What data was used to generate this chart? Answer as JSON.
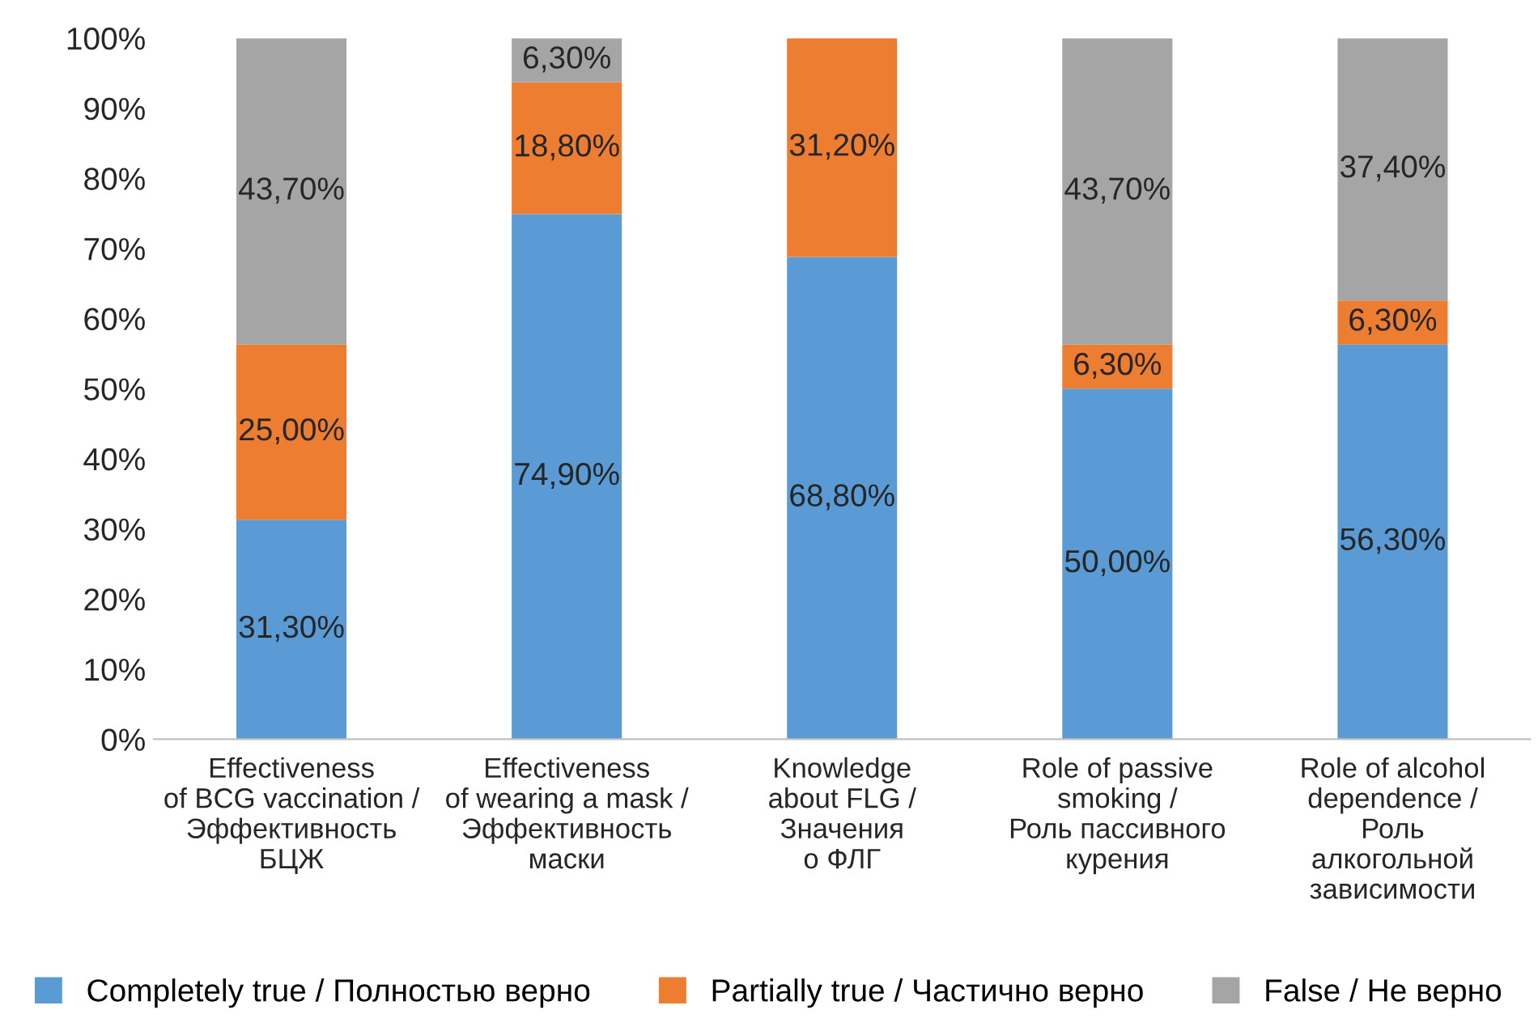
{
  "chart_data": {
    "type": "bar",
    "stacked": true,
    "categories": [
      "Effectiveness\nof BCG vaccination /\nЭффективность\nБЦЖ",
      "Effectiveness\nof wearing a mask /\nЭффективность\nмаски",
      "Knowledge\nabout FLG /\nЗначения\nо ФЛГ",
      "Role of passive\nsmoking /\nРоль пассивного\nкурения",
      "Role of alcohol\ndependence /\nРоль\nалкогольной\nзависимости"
    ],
    "series": [
      {
        "name": "Completely true / Полностью верно",
        "color": "#5b9bd5",
        "values": [
          31.3,
          74.9,
          68.8,
          50.0,
          56.3
        ],
        "value_labels": [
          "31,30%",
          "74,90%",
          "68,80%",
          "50,00%",
          "56,30%"
        ]
      },
      {
        "name": "Partially true / Частично верно",
        "color": "#ed7d31",
        "values": [
          25.0,
          18.8,
          31.2,
          6.3,
          6.3
        ],
        "value_labels": [
          "25,00%",
          "18,80%",
          "31,20%",
          "6,30%",
          "6,30%"
        ]
      },
      {
        "name": "False / Не верно",
        "color": "#a5a5a5",
        "values": [
          43.7,
          6.3,
          0,
          43.7,
          37.4
        ],
        "value_labels": [
          "43,70%",
          "6,30%",
          null,
          "43,70%",
          "37,40%"
        ]
      }
    ],
    "ylim": [
      0,
      100
    ],
    "yticks": [
      {
        "value": 0,
        "label": "0%"
      },
      {
        "value": 10,
        "label": "10%"
      },
      {
        "value": 20,
        "label": "20%"
      },
      {
        "value": 30,
        "label": "30%"
      },
      {
        "value": 40,
        "label": "40%"
      },
      {
        "value": 50,
        "label": "50%"
      },
      {
        "value": 60,
        "label": "60%"
      },
      {
        "value": 70,
        "label": "70%"
      },
      {
        "value": 80,
        "label": "80%"
      },
      {
        "value": 90,
        "label": "90%"
      },
      {
        "value": 100,
        "label": "100%"
      }
    ],
    "grid": false,
    "legend": "bottom"
  }
}
